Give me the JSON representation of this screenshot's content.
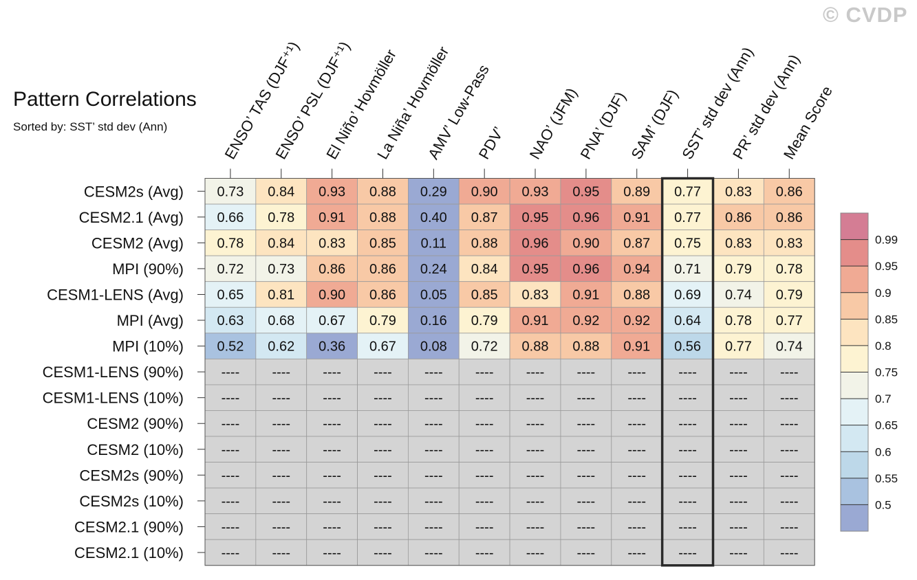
{
  "watermark": "© CVDP",
  "chart_data": {
    "type": "heatmap",
    "title": "Pattern Correlations",
    "subtitle": "Sorted by: SST’ std dev (Ann)",
    "columns": [
      "ENSO’ TAS (DJF⁺¹)",
      "ENSO’ PSL (DJF⁺¹)",
      "El Niño’ Hovmöller",
      "La Niña’ Hovmöller",
      "AMV’ Low-Pass",
      "PDV’",
      "NAO’ (JFM)",
      "PNA’ (DJF)",
      "SAM’ (DJF)",
      "SST’ std dev (Ann)",
      "PR’ std dev (Ann)",
      "Mean Score"
    ],
    "highlighted_column": "SST’ std dev (Ann)",
    "rows": [
      {
        "name": "CESM2s (Avg)",
        "values": [
          "0.73",
          "0.84",
          "0.93",
          "0.88",
          "0.29",
          "0.90",
          "0.93",
          "0.95",
          "0.89",
          "0.77",
          "0.83",
          "0.86"
        ]
      },
      {
        "name": "CESM2.1 (Avg)",
        "values": [
          "0.66",
          "0.78",
          "0.91",
          "0.88",
          "0.40",
          "0.87",
          "0.95",
          "0.96",
          "0.91",
          "0.77",
          "0.86",
          "0.86"
        ]
      },
      {
        "name": "CESM2 (Avg)",
        "values": [
          "0.78",
          "0.84",
          "0.83",
          "0.85",
          "0.11",
          "0.88",
          "0.96",
          "0.90",
          "0.87",
          "0.75",
          "0.83",
          "0.83"
        ]
      },
      {
        "name": "MPI (90%)",
        "values": [
          "0.72",
          "0.73",
          "0.86",
          "0.86",
          "0.24",
          "0.84",
          "0.95",
          "0.96",
          "0.94",
          "0.71",
          "0.79",
          "0.78"
        ]
      },
      {
        "name": "CESM1-LENS (Avg)",
        "values": [
          "0.65",
          "0.81",
          "0.90",
          "0.86",
          "0.05",
          "0.85",
          "0.83",
          "0.91",
          "0.88",
          "0.69",
          "0.74",
          "0.79"
        ]
      },
      {
        "name": "MPI (Avg)",
        "values": [
          "0.63",
          "0.68",
          "0.67",
          "0.79",
          "0.16",
          "0.79",
          "0.91",
          "0.92",
          "0.92",
          "0.64",
          "0.78",
          "0.77"
        ]
      },
      {
        "name": "MPI (10%)",
        "values": [
          "0.52",
          "0.62",
          "0.36",
          "0.67",
          "0.08",
          "0.72",
          "0.88",
          "0.88",
          "0.91",
          "0.56",
          "0.77",
          "0.74"
        ]
      },
      {
        "name": "CESM1-LENS (90%)",
        "values": [
          "----",
          "----",
          "----",
          "----",
          "----",
          "----",
          "----",
          "----",
          "----",
          "----",
          "----",
          "----"
        ]
      },
      {
        "name": "CESM1-LENS (10%)",
        "values": [
          "----",
          "----",
          "----",
          "----",
          "----",
          "----",
          "----",
          "----",
          "----",
          "----",
          "----",
          "----"
        ]
      },
      {
        "name": "CESM2 (90%)",
        "values": [
          "----",
          "----",
          "----",
          "----",
          "----",
          "----",
          "----",
          "----",
          "----",
          "----",
          "----",
          "----"
        ]
      },
      {
        "name": "CESM2 (10%)",
        "values": [
          "----",
          "----",
          "----",
          "----",
          "----",
          "----",
          "----",
          "----",
          "----",
          "----",
          "----",
          "----"
        ]
      },
      {
        "name": "CESM2s (90%)",
        "values": [
          "----",
          "----",
          "----",
          "----",
          "----",
          "----",
          "----",
          "----",
          "----",
          "----",
          "----",
          "----"
        ]
      },
      {
        "name": "CESM2s (10%)",
        "values": [
          "----",
          "----",
          "----",
          "----",
          "----",
          "----",
          "----",
          "----",
          "----",
          "----",
          "----",
          "----"
        ]
      },
      {
        "name": "CESM2.1 (90%)",
        "values": [
          "----",
          "----",
          "----",
          "----",
          "----",
          "----",
          "----",
          "----",
          "----",
          "----",
          "----",
          "----"
        ]
      },
      {
        "name": "CESM2.1 (10%)",
        "values": [
          "----",
          "----",
          "----",
          "----",
          "----",
          "----",
          "----",
          "----",
          "----",
          "----",
          "----",
          "----"
        ]
      }
    ],
    "missing_color": "#d4d4d4",
    "colorbar": {
      "labels": [
        "0.99",
        "0.95",
        "0.9",
        "0.85",
        "0.8",
        "0.75",
        "0.7",
        "0.65",
        "0.6",
        "0.55",
        "0.5"
      ],
      "thresholds": [
        0.5,
        0.55,
        0.6,
        0.65,
        0.7,
        0.75,
        0.8,
        0.85,
        0.9,
        0.95,
        0.99
      ],
      "colors": [
        "#9aa9d3",
        "#a9c2e0",
        "#bdd8e9",
        "#d3e8f2",
        "#e4f2f6",
        "#f2f3e8",
        "#fdf3d2",
        "#fde4c0",
        "#f8c9a6",
        "#f0aa94",
        "#e48d8a",
        "#d47d94"
      ]
    }
  }
}
